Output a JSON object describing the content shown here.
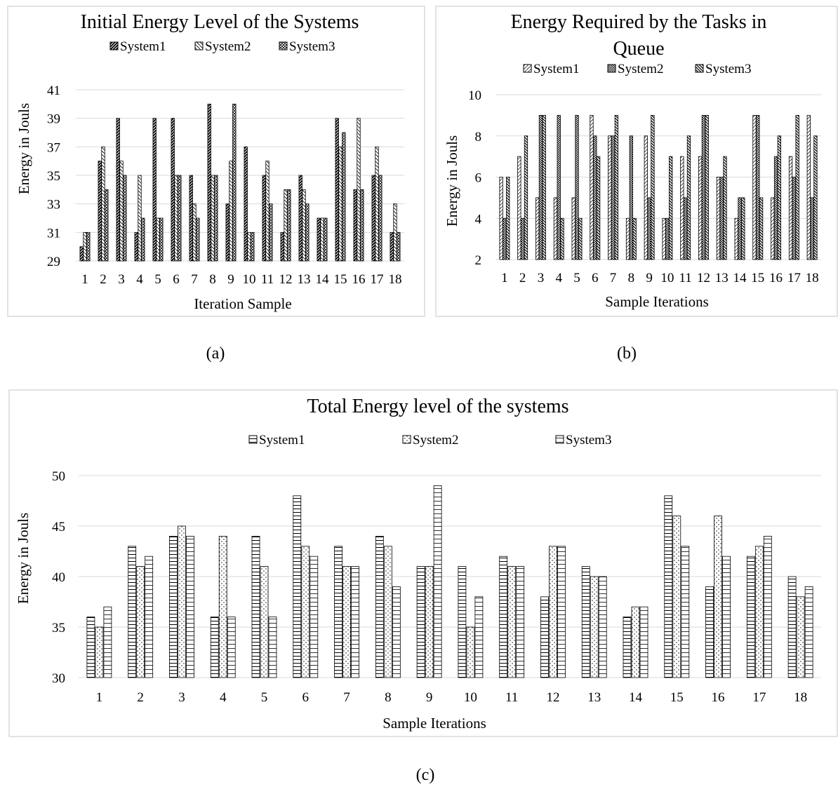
{
  "chart_data": [
    {
      "type": "bar",
      "title": "Initial Energy Level of the Systems",
      "xlabel": "Iteration Sample",
      "ylabel": "Energy in Jouls",
      "ylim": [
        29,
        41
      ],
      "yticks": [
        29,
        31,
        33,
        35,
        37,
        39,
        41
      ],
      "grid": true,
      "legend_position": "top",
      "categories": [
        "1",
        "2",
        "3",
        "4",
        "5",
        "6",
        "7",
        "8",
        "9",
        "10",
        "11",
        "12",
        "13",
        "14",
        "15",
        "16",
        "17",
        "18"
      ],
      "series": [
        {
          "name": "System1",
          "values": [
            30,
            36,
            39,
            31,
            39,
            39,
            35,
            40,
            33,
            37,
            35,
            31,
            35,
            32,
            39,
            34,
            35,
            31
          ]
        },
        {
          "name": "System2",
          "values": [
            31,
            37,
            36,
            35,
            32,
            35,
            33,
            35,
            36,
            31,
            36,
            34,
            34,
            32,
            37,
            39,
            37,
            33
          ]
        },
        {
          "name": "System3",
          "values": [
            31,
            34,
            35,
            32,
            32,
            35,
            32,
            35,
            40,
            31,
            33,
            34,
            33,
            32,
            38,
            34,
            35,
            31
          ]
        }
      ],
      "caption": "(a)"
    },
    {
      "type": "bar",
      "title": "Energy Required by the Tasks in Queue",
      "xlabel": "Sample Iterations",
      "ylabel": "Energy in Jouls",
      "ylim": [
        2,
        10
      ],
      "yticks": [
        2,
        4,
        6,
        8,
        10
      ],
      "grid": true,
      "legend_position": "top",
      "categories": [
        "1",
        "2",
        "3",
        "4",
        "5",
        "6",
        "7",
        "8",
        "9",
        "10",
        "11",
        "12",
        "13",
        "14",
        "15",
        "16",
        "17",
        "18"
      ],
      "series": [
        {
          "name": "System1",
          "values": [
            6,
            7,
            5,
            5,
            5,
            9,
            8,
            4,
            8,
            4,
            7,
            7,
            6,
            4,
            9,
            5,
            7,
            9
          ]
        },
        {
          "name": "System2",
          "values": [
            4,
            4,
            9,
            9,
            9,
            8,
            8,
            8,
            5,
            4,
            5,
            9,
            6,
            5,
            9,
            7,
            6,
            5
          ]
        },
        {
          "name": "System3",
          "values": [
            6,
            8,
            9,
            4,
            4,
            7,
            9,
            4,
            9,
            7,
            8,
            9,
            7,
            5,
            5,
            8,
            9,
            8
          ]
        }
      ],
      "caption": "(b)"
    },
    {
      "type": "bar",
      "title": "Total Energy level of the systems",
      "xlabel": "Sample Iterations",
      "ylabel": "Energy in Jouls",
      "ylim": [
        30,
        50
      ],
      "yticks": [
        30,
        35,
        40,
        45,
        50
      ],
      "grid": true,
      "legend_position": "top",
      "categories": [
        "1",
        "2",
        "3",
        "4",
        "5",
        "6",
        "7",
        "8",
        "9",
        "10",
        "11",
        "12",
        "13",
        "14",
        "15",
        "16",
        "17",
        "18"
      ],
      "series": [
        {
          "name": "System1",
          "values": [
            36,
            43,
            44,
            36,
            44,
            48,
            43,
            44,
            41,
            41,
            42,
            38,
            41,
            36,
            48,
            39,
            42,
            40
          ]
        },
        {
          "name": "System2",
          "values": [
            35,
            41,
            45,
            44,
            41,
            43,
            41,
            43,
            41,
            35,
            41,
            43,
            40,
            37,
            46,
            46,
            43,
            38
          ]
        },
        {
          "name": "System3",
          "values": [
            37,
            42,
            44,
            36,
            36,
            42,
            41,
            39,
            49,
            38,
            41,
            43,
            40,
            37,
            43,
            42,
            44,
            39
          ]
        }
      ],
      "caption": "(c)"
    }
  ]
}
